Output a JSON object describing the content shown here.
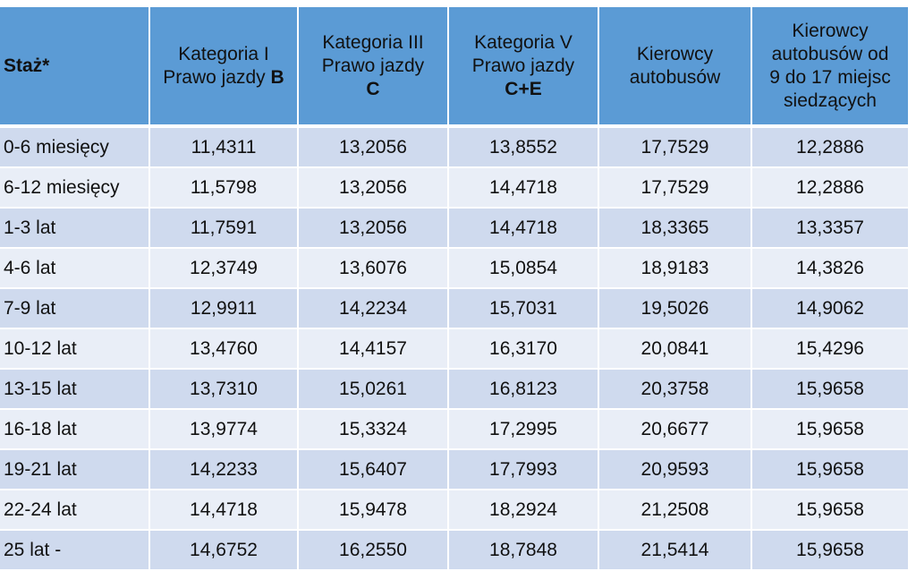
{
  "table": {
    "headers": [
      {
        "lines": [
          {
            "text": "Staż*"
          }
        ]
      },
      {
        "lines": [
          {
            "text": "Kategoria I"
          },
          {
            "text": "Prawo jazdy ",
            "bold": "B"
          }
        ]
      },
      {
        "lines": [
          {
            "text": "Kategoria III"
          },
          {
            "text": "Prawo jazdy"
          },
          {
            "text": "",
            "bold": "C"
          }
        ]
      },
      {
        "lines": [
          {
            "text": "Kategoria V"
          },
          {
            "text": "Prawo jazdy"
          },
          {
            "text": "",
            "bold": "C+E"
          }
        ]
      },
      {
        "lines": [
          {
            "text": "Kierowcy"
          },
          {
            "text": "autobusów"
          }
        ]
      },
      {
        "lines": [
          {
            "text": "Kierowcy"
          },
          {
            "text": "autobusów od"
          },
          {
            "text": "9 do 17 miejsc"
          },
          {
            "text": "siedzących"
          }
        ]
      }
    ],
    "rows": [
      [
        "0-6 miesięcy",
        "11,4311",
        "13,2056",
        "13,8552",
        "17,7529",
        "12,2886"
      ],
      [
        "6-12 miesięcy",
        "11,5798",
        "13,2056",
        "14,4718",
        "17,7529",
        "12,2886"
      ],
      [
        "1-3 lat",
        "11,7591",
        "13,2056",
        "14,4718",
        "18,3365",
        "13,3357"
      ],
      [
        "4-6 lat",
        "12,3749",
        "13,6076",
        "15,0854",
        "18,9183",
        "14,3826"
      ],
      [
        "7-9 lat",
        "12,9911",
        "14,2234",
        "15,7031",
        "19,5026",
        "14,9062"
      ],
      [
        "10-12 lat",
        "13,4760",
        "14,4157",
        "16,3170",
        "20,0841",
        "15,4296"
      ],
      [
        "13-15 lat",
        "13,7310",
        "15,0261",
        "16,8123",
        "20,3758",
        "15,9658"
      ],
      [
        "16-18 lat",
        "13,9774",
        "15,3324",
        "17,2995",
        "20,6677",
        "15,9658"
      ],
      [
        "19-21 lat",
        "14,2233",
        "15,6407",
        "17,7993",
        "20,9593",
        "15,9658"
      ],
      [
        "22-24 lat",
        "14,4718",
        "15,9478",
        "18,2924",
        "21,2508",
        "15,9658"
      ],
      [
        "25 lat -",
        "14,6752",
        "16,2550",
        "18,7848",
        "21,5414",
        "15,9658"
      ]
    ],
    "colors": {
      "header_bg": "#5b9bd5",
      "row_odd_bg": "#cfdaee",
      "row_even_bg": "#e9eef7"
    }
  }
}
